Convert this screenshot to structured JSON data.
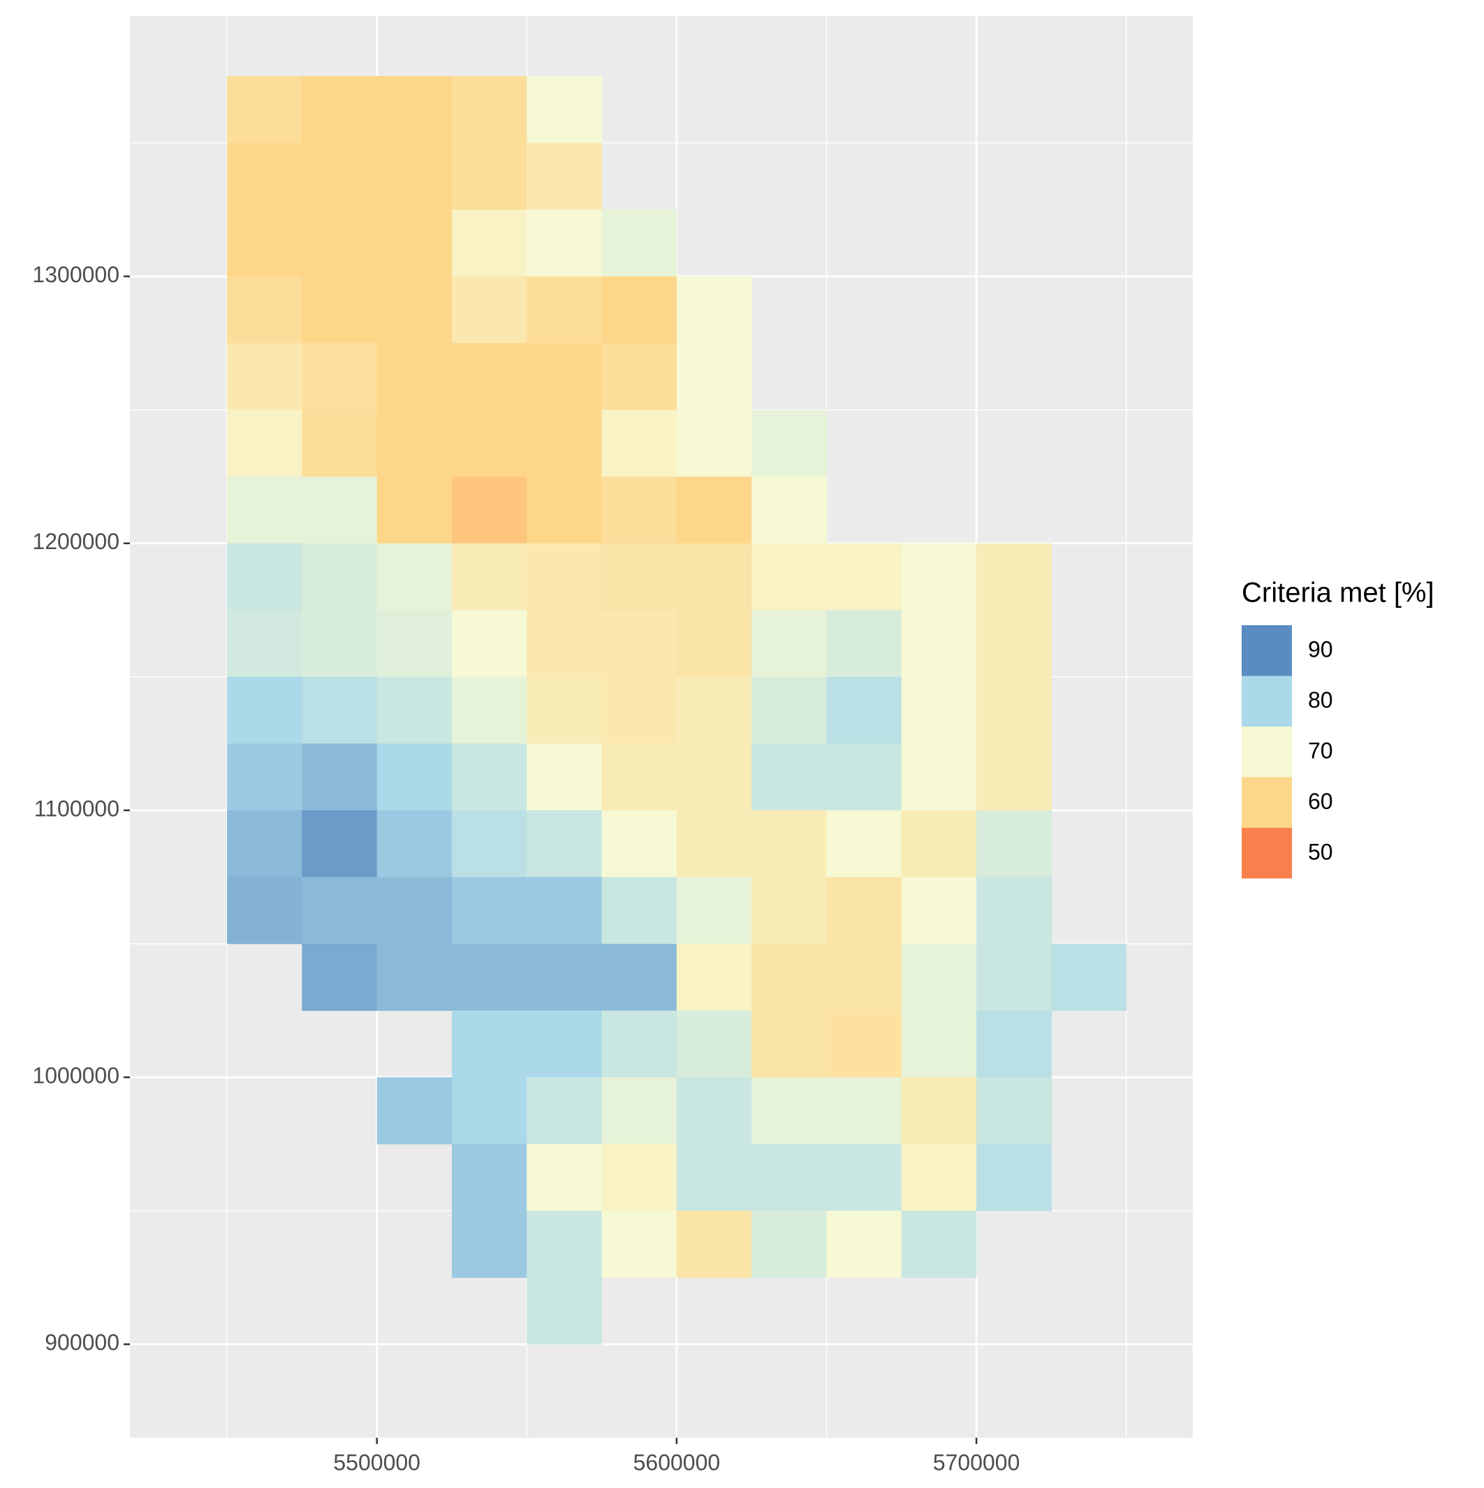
{
  "chart_data": {
    "type": "raster",
    "x": [
      5462500,
      5487500,
      5512500,
      5537500,
      5562500,
      5587500,
      5612500,
      5637500,
      5662500,
      5687500,
      5712500,
      5737500
    ],
    "y": [
      1362500,
      1337500,
      1312500,
      1287500,
      1262500,
      1237500,
      1212500,
      1187500,
      1162500,
      1137500,
      1112500,
      1087500,
      1062500,
      1037500,
      1012500,
      987500,
      962500,
      937500,
      912500
    ],
    "values": [
      [
        62,
        60,
        60,
        62,
        70,
        null,
        null,
        null,
        null,
        null,
        null,
        null
      ],
      [
        60,
        60,
        60,
        62,
        65,
        null,
        null,
        null,
        null,
        null,
        null,
        null
      ],
      [
        60,
        60,
        60,
        68,
        70,
        72,
        null,
        null,
        null,
        null,
        null,
        null
      ],
      [
        62,
        60,
        60,
        65,
        62,
        60,
        70,
        null,
        null,
        null,
        null,
        null
      ],
      [
        65,
        63,
        60,
        60,
        60,
        62,
        70,
        null,
        null,
        null,
        null,
        null
      ],
      [
        68,
        62,
        60,
        60,
        60,
        68,
        70,
        72,
        null,
        null,
        null,
        null
      ],
      [
        72,
        72,
        60,
        58,
        60,
        62,
        60,
        70,
        null,
        null,
        null,
        null
      ],
      [
        76,
        74,
        72,
        66,
        65,
        64,
        64,
        68,
        68,
        70,
        66,
        null
      ],
      [
        75,
        74,
        73,
        70,
        65,
        65,
        64,
        72,
        74,
        70,
        66,
        null
      ],
      [
        80,
        78,
        76,
        72,
        66,
        65,
        66,
        74,
        78,
        70,
        66,
        null
      ],
      [
        82,
        84,
        80,
        76,
        70,
        66,
        66,
        76,
        76,
        70,
        66,
        null
      ],
      [
        84,
        88,
        82,
        78,
        76,
        70,
        66,
        66,
        70,
        66,
        74,
        null
      ],
      [
        85,
        84,
        84,
        82,
        82,
        76,
        72,
        66,
        64,
        70,
        76,
        null
      ],
      [
        null,
        86,
        84,
        84,
        84,
        84,
        68,
        64,
        64,
        72,
        76,
        78
      ],
      [
        null,
        null,
        null,
        80,
        80,
        76,
        74,
        64,
        63,
        72,
        78,
        null
      ],
      [
        null,
        null,
        82,
        80,
        76,
        72,
        76,
        72,
        72,
        66,
        76,
        null
      ],
      [
        null,
        null,
        null,
        82,
        70,
        68,
        76,
        76,
        76,
        68,
        78,
        null
      ],
      [
        null,
        null,
        null,
        82,
        76,
        70,
        64,
        74,
        70,
        76,
        null,
        null
      ],
      [
        null,
        null,
        null,
        null,
        76,
        null,
        null,
        null,
        null,
        null,
        null,
        null
      ]
    ],
    "cell_size": 25000,
    "xlim": [
      5417600,
      5772200
    ],
    "ylim": [
      865000,
      1397500
    ],
    "xticks": [
      5500000,
      5600000,
      5700000
    ],
    "yticks": [
      900000,
      1000000,
      1100000,
      1200000,
      1300000
    ],
    "x_minor_grid": [
      5450000,
      5550000,
      5650000,
      5750000
    ],
    "y_minor_grid": [
      950000,
      1050000,
      1150000,
      1250000,
      1350000
    ],
    "grid": true,
    "legend_title": "Criteria met [%]",
    "legend_breaks": [
      90,
      80,
      70,
      60,
      50
    ],
    "legend_colors": [
      "#5a8bc1",
      "#abd9e9",
      "#f6f9d4",
      "#fed68a",
      "#f8804c"
    ]
  }
}
